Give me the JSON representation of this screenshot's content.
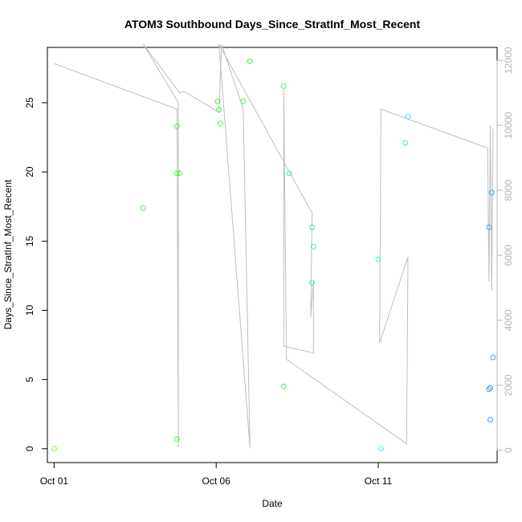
{
  "chart_data": {
    "type": "scatter",
    "title": "ATOM3 Southbound Days_Since_StratInf_Most_Recent",
    "xlabel": "Date",
    "ylabel": "Days_Since_StratInf_Most_Recent",
    "x_ticks": [
      "Oct 01",
      "Oct 06",
      "Oct 11"
    ],
    "y_ticks": [
      "0",
      "5",
      "10",
      "15",
      "20",
      "25"
    ],
    "y2_ticks": [
      "0",
      "2000",
      "4000",
      "6000",
      "8000",
      "10000",
      "12000"
    ],
    "grid": false,
    "xlim": [
      "2020-09-30T19:00",
      "2020-10-14T16:00"
    ],
    "ylim": [
      -1.0,
      29.0
    ],
    "y2lim": [
      -380,
      12400
    ],
    "points": [
      {
        "x": "2020-10-01T00:00",
        "y": 0.0,
        "color": "#7CFC3C"
      },
      {
        "x": "2020-10-03T18:00",
        "y": 17.4,
        "color": "#5CF23C"
      },
      {
        "x": "2020-10-04T19:00",
        "y": 23.3,
        "color": "#4CF03C"
      },
      {
        "x": "2020-10-04T19:00",
        "y": 0.7,
        "color": "#4CF03C"
      },
      {
        "x": "2020-10-04T19:00",
        "y": 19.9,
        "color": "#4CF03C"
      },
      {
        "x": "2020-10-04T21:00",
        "y": 19.9,
        "color": "#4CF03C"
      },
      {
        "x": "2020-10-06T01:00",
        "y": 25.1,
        "color": "#3CF048"
      },
      {
        "x": "2020-10-06T02:00",
        "y": 24.5,
        "color": "#3CF048"
      },
      {
        "x": "2020-10-06T03:00",
        "y": 23.5,
        "color": "#3CF048"
      },
      {
        "x": "2020-10-06T20:00",
        "y": 25.1,
        "color": "#3CF050"
      },
      {
        "x": "2020-10-07T01:00",
        "y": 28.0,
        "color": "#3CF050"
      },
      {
        "x": "2020-10-08T02:00",
        "y": 26.2,
        "color": "#3CF078"
      },
      {
        "x": "2020-10-08T02:00",
        "y": 4.5,
        "color": "#3CF078"
      },
      {
        "x": "2020-10-08T06:00",
        "y": 19.9,
        "color": "#3CF090"
      },
      {
        "x": "2020-10-08T23:00",
        "y": 16.0,
        "color": "#3CF0A8"
      },
      {
        "x": "2020-10-09T00:00",
        "y": 14.6,
        "color": "#3CF0A8"
      },
      {
        "x": "2020-10-08T23:00",
        "y": 12.0,
        "color": "#3CF0A8"
      },
      {
        "x": "2020-10-11T00:00",
        "y": 13.7,
        "color": "#3CF0D8"
      },
      {
        "x": "2020-10-11T02:00",
        "y": 0.0,
        "color": "#3CE8F0"
      },
      {
        "x": "2020-10-11T20:00",
        "y": 22.1,
        "color": "#3CE0F0"
      },
      {
        "x": "2020-10-11T22:00",
        "y": 24.0,
        "color": "#3CE0F0"
      },
      {
        "x": "2020-10-14T10:00",
        "y": 16.0,
        "color": "#3CA8F0"
      },
      {
        "x": "2020-10-14T12:00",
        "y": 18.5,
        "color": "#3CA8F0"
      },
      {
        "x": "2020-10-14T13:00",
        "y": 6.6,
        "color": "#3CA0F0"
      },
      {
        "x": "2020-10-14T10:00",
        "y": 4.3,
        "color": "#3C98F0"
      },
      {
        "x": "2020-10-14T11:00",
        "y": 4.4,
        "color": "#3C98F0"
      },
      {
        "x": "2020-10-14T11:00",
        "y": 2.1,
        "color": "#3C98F0"
      }
    ],
    "line_series": {
      "axis": "right",
      "color": "#bebebe",
      "points": [
        {
          "x": "2020-10-01T00:00",
          "y": 11900
        },
        {
          "x": "2020-10-04T19:00",
          "y": 10500
        },
        {
          "x": "2020-10-04T20:00",
          "y": 100
        },
        {
          "x": "2020-10-04T20:00",
          "y": 10700
        },
        {
          "x": "2020-10-03T18:00",
          "y": 12500
        },
        {
          "x": "2020-10-04T21:00",
          "y": 11000
        },
        {
          "x": "2020-10-05T00:00",
          "y": 11050
        },
        {
          "x": "2020-10-06T02:00",
          "y": 10400
        },
        {
          "x": "2020-10-06T04:00",
          "y": 12500
        },
        {
          "x": "2020-10-06T20:00",
          "y": 10500
        },
        {
          "x": "2020-10-07T01:00",
          "y": 80
        },
        {
          "x": "2020-10-06T02:00",
          "y": 12500
        },
        {
          "x": "2020-10-08T23:00",
          "y": 7300
        },
        {
          "x": "2020-10-08T22:00",
          "y": 4100
        },
        {
          "x": "2020-10-09T00:00",
          "y": 5200
        },
        {
          "x": "2020-10-09T00:00",
          "y": 3000
        },
        {
          "x": "2020-10-08T02:00",
          "y": 3200
        },
        {
          "x": "2020-10-08T02:00",
          "y": 11100
        },
        {
          "x": "2020-10-08T04:00",
          "y": 2800
        },
        {
          "x": "2020-10-11T21:00",
          "y": 200
        },
        {
          "x": "2020-10-11T22:00",
          "y": 5950
        },
        {
          "x": "2020-10-11T01:00",
          "y": 3300
        },
        {
          "x": "2020-10-11T02:00",
          "y": 10500
        },
        {
          "x": "2020-10-14T09:00",
          "y": 9300
        },
        {
          "x": "2020-10-14T10:00",
          "y": 5200
        },
        {
          "x": "2020-10-14T11:00",
          "y": 10000
        },
        {
          "x": "2020-10-14T12:00",
          "y": 4900
        },
        {
          "x": "2020-10-14T13:00",
          "y": 9900
        }
      ]
    }
  }
}
